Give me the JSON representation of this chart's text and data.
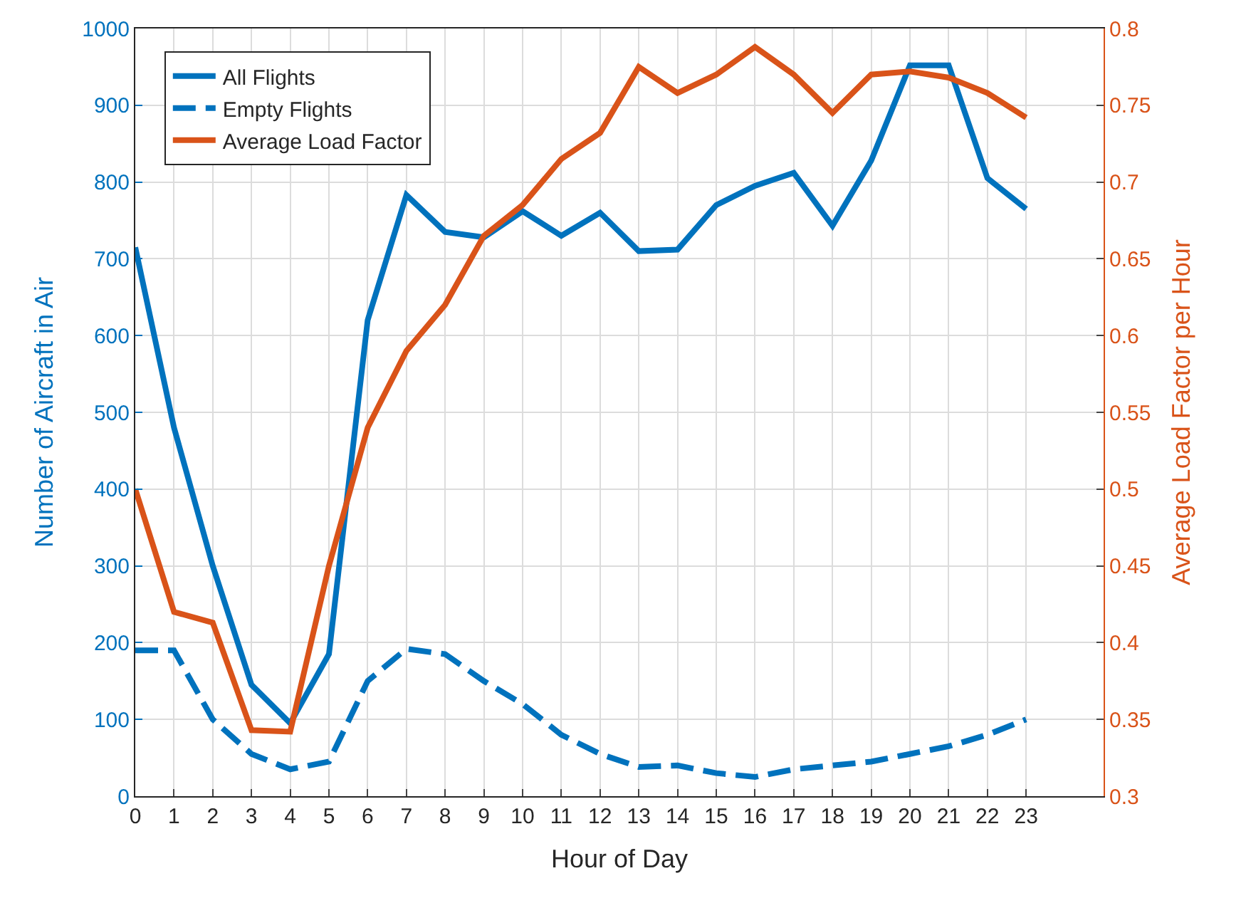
{
  "chart_data": {
    "type": "line",
    "xlabel": "Hour of Day",
    "ylabel": "Number of Aircraft in Air",
    "y2label": "Average Load Factor per Hour",
    "x": [
      0,
      1,
      2,
      3,
      4,
      5,
      6,
      7,
      8,
      9,
      10,
      11,
      12,
      13,
      14,
      15,
      16,
      17,
      18,
      19,
      20,
      21,
      22,
      23
    ],
    "series": [
      {
        "name": "All Flights",
        "color": "#0072bd",
        "line_style": "solid",
        "values": [
          715,
          480,
          300,
          145,
          95,
          185,
          620,
          783,
          735,
          728,
          762,
          730,
          760,
          710,
          712,
          770,
          795,
          812,
          743,
          828,
          952,
          952,
          805,
          765
        ]
      },
      {
        "name": "Empty Flights",
        "color": "#0072bd",
        "line_style": "dashed",
        "values": [
          190,
          190,
          100,
          55,
          35,
          45,
          150,
          192,
          185,
          150,
          120,
          80,
          55,
          38,
          40,
          30,
          25,
          35,
          40,
          45,
          55,
          65,
          80,
          100
        ]
      },
      {
        "name": "Average Load Factor",
        "color": "#d95319",
        "line_style": "solid",
        "axis": "y2",
        "values": [
          0.5,
          0.42,
          0.413,
          0.343,
          0.342,
          0.45,
          0.54,
          0.59,
          0.62,
          0.665,
          0.685,
          0.715,
          0.732,
          0.775,
          0.758,
          0.77,
          0.788,
          0.77,
          0.745,
          0.77,
          0.772,
          0.768,
          0.758,
          0.742
        ]
      }
    ],
    "xlim": [
      0,
      25
    ],
    "xticks": [
      0,
      1,
      2,
      3,
      4,
      5,
      6,
      7,
      8,
      9,
      10,
      11,
      12,
      13,
      14,
      15,
      16,
      17,
      18,
      19,
      20,
      21,
      22,
      23
    ],
    "ylim": [
      0,
      1000
    ],
    "yticks": [
      0,
      100,
      200,
      300,
      400,
      500,
      600,
      700,
      800,
      900,
      1000
    ],
    "y2lim": [
      0.3,
      0.8
    ],
    "y2ticks": [
      0.3,
      0.35,
      0.4,
      0.45,
      0.5,
      0.55,
      0.6,
      0.65,
      0.7,
      0.75,
      0.8
    ],
    "grid": true,
    "legend": "top left",
    "marker": "none"
  }
}
